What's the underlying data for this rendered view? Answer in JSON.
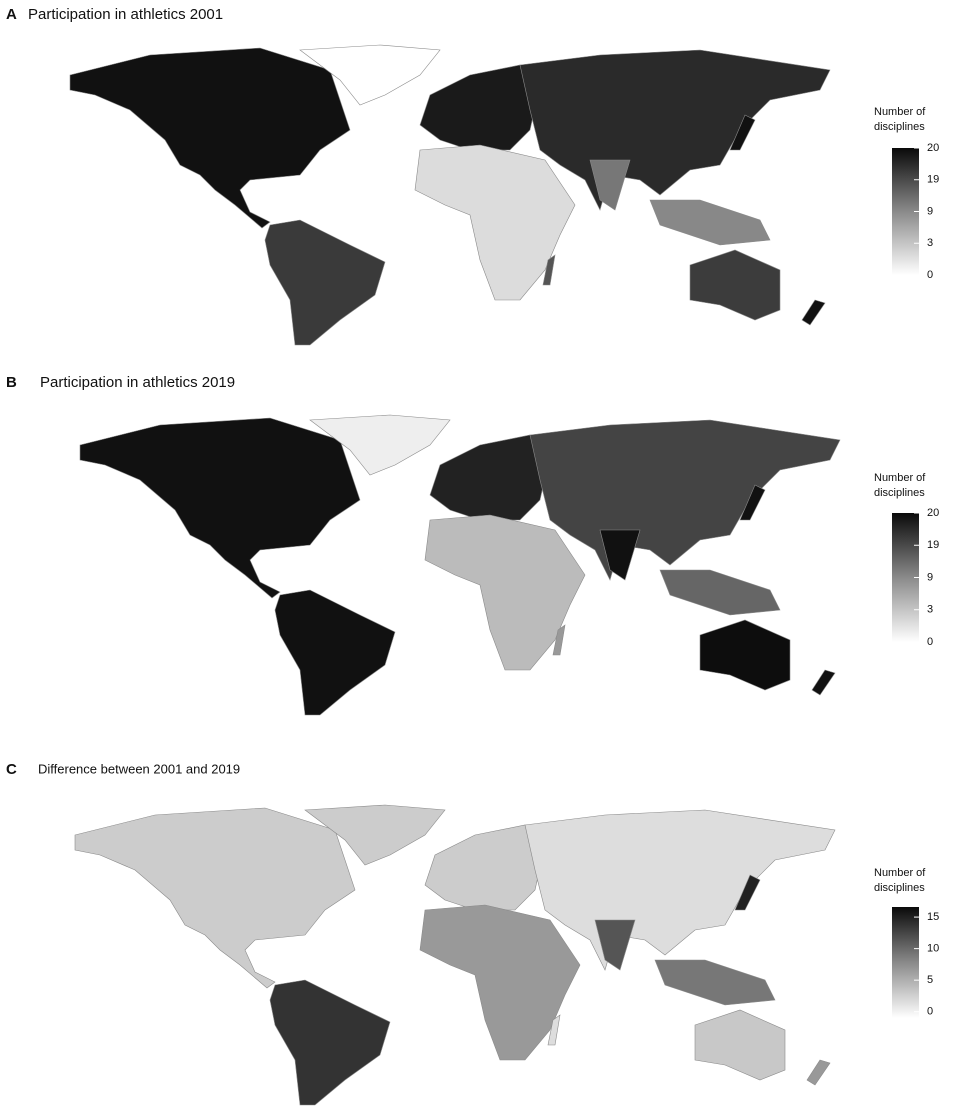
{
  "panels": [
    {
      "label": "A",
      "title": "Participation in athletics 2001",
      "legend": {
        "title_lines": [
          "Number of",
          "disciplines"
        ],
        "ticks": [
          0,
          3,
          9,
          19,
          20
        ]
      }
    },
    {
      "label": "B",
      "title": "Participation in athletics 2019",
      "legend": {
        "title_lines": [
          "Number of",
          "disciplines"
        ],
        "ticks": [
          0,
          3,
          9,
          19,
          20
        ]
      }
    },
    {
      "label": "C",
      "title": "Difference between 2001 and 2019",
      "legend": {
        "title_lines": [
          "Number of",
          "disciplines"
        ],
        "ticks": [
          0,
          5,
          10,
          15
        ],
        "lim": [
          -1,
          16.6
        ]
      }
    }
  ]
}
